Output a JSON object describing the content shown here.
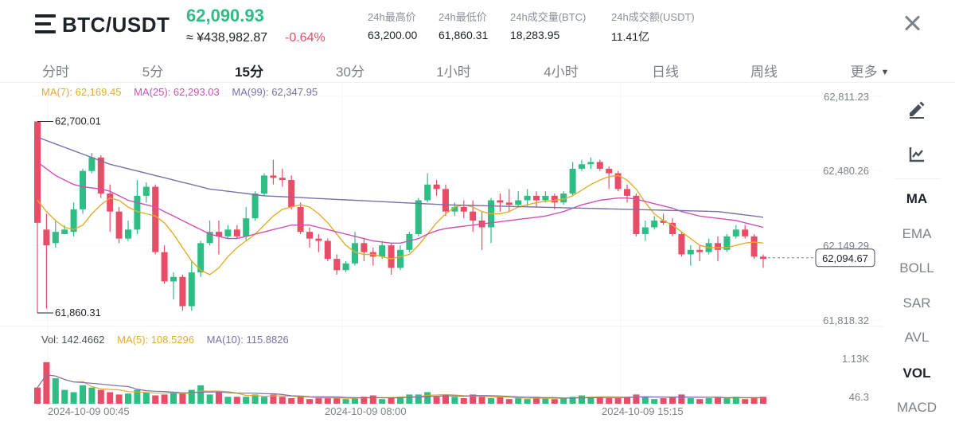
{
  "header": {
    "pair": "BTC/USDT",
    "last_price": "62,090.93",
    "cny_price": "≈ ¥438,982.87",
    "change_pct": "-0.64%",
    "stats": [
      {
        "label": "24h最高价",
        "value": "63,200.00"
      },
      {
        "label": "24h最低价",
        "value": "61,860.31"
      },
      {
        "label": "24h成交量(BTC)",
        "value": "18,283.95"
      },
      {
        "label": "24h成交额(USDT)",
        "value": "11.41亿"
      }
    ]
  },
  "tabs": [
    {
      "label": "分时",
      "active": false
    },
    {
      "label": "5分",
      "active": false
    },
    {
      "label": "15分",
      "active": true
    },
    {
      "label": "30分",
      "active": false
    },
    {
      "label": "1小时",
      "active": false
    },
    {
      "label": "4小时",
      "active": false
    },
    {
      "label": "日线",
      "active": false
    },
    {
      "label": "周线",
      "active": false
    },
    {
      "label": "更多",
      "active": false,
      "dropdown": true
    }
  ],
  "ma_legend": {
    "ma7": "MA(7): 62,169.45",
    "ma25": "MA(25): 62,293.03",
    "ma99": "MA(99): 62,347.95"
  },
  "vol_legend": {
    "vol": "Vol: 142.4662",
    "ma5": "MA(5): 108.5296",
    "ma10": "MA(10): 115.8826"
  },
  "colors": {
    "up": "#2ebd85",
    "down": "#e84d68",
    "ma7": "#e3ad2b",
    "ma25": "#cf50b4",
    "ma99": "#7c6fa8",
    "accent_price": "#2ebd85"
  },
  "side_panel": {
    "tools": [
      "pencil-icon",
      "chart-icon"
    ],
    "indicators": [
      {
        "label": "MA",
        "active": true
      },
      {
        "label": "EMA",
        "active": false
      },
      {
        "label": "BOLL",
        "active": false
      },
      {
        "label": "SAR",
        "active": false
      },
      {
        "label": "AVL",
        "active": false
      },
      {
        "label": "VOL",
        "active": true
      },
      {
        "label": "MACD",
        "active": false
      }
    ]
  },
  "chart_data": {
    "type": "candlestick",
    "interval": "15分",
    "price_axis_labels": [
      "62,811.23",
      "62,480.26",
      "62,149.29",
      "61,818.32"
    ],
    "ylim": [
      61818.32,
      62811.23
    ],
    "current_price_label": "62,094.67",
    "current_price": 62094.67,
    "high_label": "62,700.01",
    "low_label": "61,860.31",
    "volume_axis_labels": [
      "1.13K",
      "46.3"
    ],
    "vol_max": 1130,
    "time_labels": [
      "2024-10-09 00:45",
      "2024-10-09 08:00",
      "2024-10-09 15:15"
    ],
    "grid": true,
    "candles": [
      [
        62700,
        62250,
        62700,
        61850
      ],
      [
        62220,
        62150,
        62290,
        61870
      ],
      [
        62160,
        62210,
        62260,
        62140
      ],
      [
        62200,
        62220,
        62240,
        62200
      ],
      [
        62210,
        62310,
        62340,
        62190
      ],
      [
        62310,
        62480,
        62490,
        62290
      ],
      [
        62480,
        62540,
        62560,
        62470
      ],
      [
        62540,
        62380,
        62550,
        62360
      ],
      [
        62380,
        62300,
        62420,
        62210
      ],
      [
        62300,
        62180,
        62320,
        62160
      ],
      [
        62180,
        62220,
        62260,
        62170
      ],
      [
        62220,
        62370,
        62440,
        62200
      ],
      [
        62370,
        62410,
        62430,
        62340
      ],
      [
        62410,
        62120,
        62420,
        62110
      ],
      [
        62120,
        61990,
        62150,
        61980
      ],
      [
        61990,
        62010,
        62030,
        61910
      ],
      [
        62010,
        61880,
        62020,
        61860
      ],
      [
        61880,
        62030,
        62080,
        61860
      ],
      [
        62030,
        62160,
        62170,
        62010
      ],
      [
        62160,
        62210,
        62260,
        62150
      ],
      [
        62210,
        62190,
        62260,
        62110
      ],
      [
        62190,
        62220,
        62240,
        62180
      ],
      [
        62220,
        62190,
        62240,
        62180
      ],
      [
        62190,
        62270,
        62320,
        62170
      ],
      [
        62270,
        62380,
        62390,
        62260
      ],
      [
        62380,
        62460,
        62470,
        62370
      ],
      [
        62460,
        62450,
        62530,
        62420
      ],
      [
        62450,
        62440,
        62490,
        62410
      ],
      [
        62440,
        62320,
        62460,
        62310
      ],
      [
        62320,
        62210,
        62340,
        62200
      ],
      [
        62210,
        62180,
        62230,
        62140
      ],
      [
        62180,
        62170,
        62200,
        62120
      ],
      [
        62170,
        62090,
        62180,
        62080
      ],
      [
        62090,
        62040,
        62110,
        62020
      ],
      [
        62040,
        62070,
        62080,
        62030
      ],
      [
        62070,
        62160,
        62210,
        62060
      ],
      [
        62160,
        62120,
        62180,
        62080
      ],
      [
        62120,
        62100,
        62140,
        62060
      ],
      [
        62100,
        62150,
        62170,
        62090
      ],
      [
        62150,
        62050,
        62160,
        62020
      ],
      [
        62050,
        62130,
        62150,
        62040
      ],
      [
        62130,
        62200,
        62210,
        62120
      ],
      [
        62200,
        62350,
        62360,
        62190
      ],
      [
        62350,
        62420,
        62470,
        62340
      ],
      [
        62420,
        62400,
        62440,
        62370
      ],
      [
        62400,
        62300,
        62420,
        62280
      ],
      [
        62300,
        62320,
        62340,
        62280
      ],
      [
        62320,
        62300,
        62350,
        62270
      ],
      [
        62300,
        62260,
        62350,
        62210
      ],
      [
        62260,
        62230,
        62300,
        62130
      ],
      [
        62230,
        62350,
        62360,
        62160
      ],
      [
        62350,
        62340,
        62380,
        62300
      ],
      [
        62340,
        62330,
        62400,
        62300
      ],
      [
        62330,
        62350,
        62390,
        62320
      ],
      [
        62350,
        62370,
        62400,
        62320
      ],
      [
        62370,
        62350,
        62390,
        62320
      ],
      [
        62350,
        62370,
        62390,
        62340
      ],
      [
        62370,
        62340,
        62380,
        62310
      ],
      [
        62340,
        62380,
        62390,
        62330
      ],
      [
        62380,
        62490,
        62520,
        62370
      ],
      [
        62490,
        62510,
        62530,
        62480
      ],
      [
        62510,
        62520,
        62540,
        62490
      ],
      [
        62520,
        62490,
        62530,
        62480
      ],
      [
        62490,
        62470,
        62500,
        62400
      ],
      [
        62470,
        62400,
        62480,
        62390
      ],
      [
        62400,
        62370,
        62420,
        62340
      ],
      [
        62370,
        62200,
        62380,
        62190
      ],
      [
        62200,
        62230,
        62260,
        62170
      ],
      [
        62230,
        62260,
        62280,
        62220
      ],
      [
        62260,
        62250,
        62290,
        62240
      ],
      [
        62250,
        62200,
        62270,
        62190
      ],
      [
        62200,
        62110,
        62210,
        62100
      ],
      [
        62110,
        62130,
        62150,
        62060
      ],
      [
        62130,
        62120,
        62150,
        62080
      ],
      [
        62120,
        62160,
        62180,
        62110
      ],
      [
        62160,
        62130,
        62190,
        62080
      ],
      [
        62130,
        62190,
        62200,
        62120
      ],
      [
        62190,
        62220,
        62240,
        62180
      ],
      [
        62220,
        62190,
        62240,
        62180
      ],
      [
        62190,
        62100,
        62200,
        62090
      ],
      [
        62100,
        62090,
        62110,
        62050
      ]
    ],
    "volumes": [
      0.35,
      0.9,
      0.55,
      0.3,
      0.25,
      0.4,
      0.35,
      0.3,
      0.25,
      0.2,
      0.22,
      0.3,
      0.25,
      0.18,
      0.2,
      0.25,
      0.22,
      0.3,
      0.4,
      0.2,
      0.25,
      0.15,
      0.15,
      0.15,
      0.2,
      0.15,
      0.2,
      0.15,
      0.12,
      0.15,
      0.1,
      0.12,
      0.15,
      0.12,
      0.1,
      0.12,
      0.15,
      0.18,
      0.1,
      0.12,
      0.15,
      0.2,
      0.2,
      0.25,
      0.15,
      0.2,
      0.15,
      0.12,
      0.2,
      0.15,
      0.12,
      0.15,
      0.1,
      0.12,
      0.1,
      0.15,
      0.12,
      0.1,
      0.12,
      0.15,
      0.18,
      0.15,
      0.15,
      0.12,
      0.12,
      0.15,
      0.2,
      0.15,
      0.1,
      0.12,
      0.15,
      0.2,
      0.12,
      0.1,
      0.12,
      0.15,
      0.12,
      0.15,
      0.1,
      0.12,
      0.15
    ],
    "series": [
      {
        "name": "MA(7)",
        "values": [
          62350,
          62300,
          62260,
          62230,
          62220,
          62240,
          62290,
          62330,
          62360,
          62350,
          62320,
          62300,
          62290,
          62280,
          62250,
          62200,
          62140,
          62080,
          62040,
          62020,
          62050,
          62100,
          62140,
          62170,
          62200,
          62240,
          62280,
          62310,
          62320,
          62330,
          62320,
          62290,
          62250,
          62200,
          62150,
          62120,
          62110,
          62110,
          62100,
          62090,
          62100,
          62110,
          62150,
          62200,
          62250,
          62290,
          62320,
          62330,
          62320,
          62300,
          62290,
          62290,
          62300,
          62320,
          62330,
          62340,
          62345,
          62350,
          62355,
          62370,
          62395,
          62420,
          62440,
          62455,
          62460,
          62440,
          62400,
          62340,
          62290,
          62260,
          62240,
          62210,
          62180,
          62150,
          62140,
          62140,
          62140,
          62150,
          62160,
          62165,
          62160
        ]
      },
      {
        "name": "MA(25)",
        "values": [
          62520,
          62490,
          62460,
          62440,
          62420,
          62410,
          62405,
          62400,
          62390,
          62370,
          62350,
          62340,
          62330,
          62320,
          62300,
          62280,
          62260,
          62240,
          62220,
          62200,
          62190,
          62180,
          62180,
          62190,
          62200,
          62210,
          62220,
          62230,
          62240,
          62240,
          62240,
          62230,
          62220,
          62210,
          62200,
          62190,
          62180,
          62170,
          62165,
          62160,
          62160,
          62170,
          62180,
          62200,
          62215,
          62225,
          62230,
          62235,
          62240,
          62245,
          62250,
          62255,
          62260,
          62265,
          62270,
          62275,
          62280,
          62290,
          62300,
          62315,
          62330,
          62340,
          62350,
          62355,
          62360,
          62360,
          62355,
          62345,
          62335,
          62325,
          62315,
          62300,
          62290,
          62280,
          62275,
          62270,
          62265,
          62260,
          62250,
          62240,
          62230
        ]
      },
      {
        "name": "MA(99)",
        "values": [
          62630,
          62615,
          62600,
          62585,
          62570,
          62555,
          62540,
          62525,
          62510,
          62500,
          62490,
          62480,
          62470,
          62460,
          62450,
          62440,
          62430,
          62420,
          62410,
          62400,
          62395,
          62390,
          62385,
          62380,
          62375,
          62370,
          62368,
          62366,
          62364,
          62362,
          62360,
          62358,
          62356,
          62354,
          62352,
          62350,
          62348,
          62346,
          62344,
          62342,
          62340,
          62338,
          62336,
          62334,
          62332,
          62330,
          62329,
          62328,
          62327,
          62326,
          62325,
          62324,
          62323,
          62322,
          62321,
          62320,
          62319,
          62318,
          62317,
          62316,
          62315,
          62314,
          62313,
          62312,
          62311,
          62310,
          62309,
          62308,
          62307,
          62306,
          62305,
          62304,
          62303,
          62302,
          62301,
          62300,
          62295,
          62290,
          62285,
          62280,
          62275
        ]
      }
    ]
  }
}
